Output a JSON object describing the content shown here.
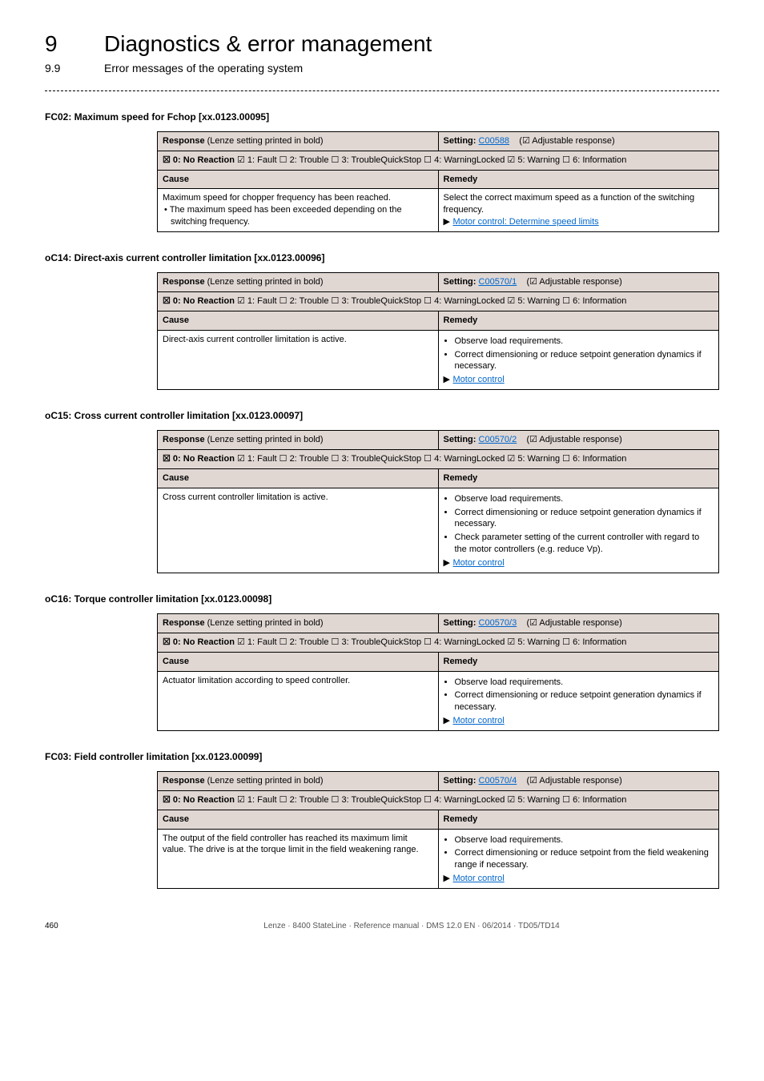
{
  "header": {
    "chapter_num": "9",
    "chapter_title": "Diagnostics & error management",
    "section_num": "9.9",
    "section_title": "Error messages of the operating system"
  },
  "common": {
    "response_label": "Response",
    "response_paren": "(Lenze setting printed in bold)",
    "setting_label": "Setting:",
    "adj_resp": "(☑ Adjustable response)",
    "opts_prefix": "☒ 0: No Reaction",
    "opts_rest": "  ☑ 1: Fault  ☐ 2: Trouble  ☐ 3: TroubleQuickStop  ☐ 4: WarningLocked  ☑ 5: Warning  ☐ 6: Information",
    "cause_hdr": "Cause",
    "remedy_hdr": "Remedy",
    "motor_control_link": "Motor control",
    "motor_speed_link": "Motor control: Determine speed limits"
  },
  "errors": [
    {
      "title": "FC02: Maximum speed for Fchop [xx.0123.00095]",
      "setting_code": "C00588",
      "cause_lines": [
        "Maximum speed for chopper frequency has been reached.",
        "• The maximum speed has been exceeded depending on the switching frequency."
      ],
      "remedy_text": "Select the correct maximum speed as a function of the switching frequency.",
      "remedy_link_key": "motor_speed_link",
      "remedy_bullets": []
    },
    {
      "title": "oC14: Direct-axis current controller limitation [xx.0123.00096]",
      "setting_code": "C00570/1",
      "cause_lines": [
        "Direct-axis current controller limitation is active."
      ],
      "remedy_text": "",
      "remedy_link_key": "motor_control_link",
      "remedy_bullets": [
        "Observe load requirements.",
        "Correct dimensioning or reduce setpoint generation dynamics if necessary."
      ]
    },
    {
      "title": "oC15: Cross current controller limitation [xx.0123.00097]",
      "setting_code": "C00570/2",
      "cause_lines": [
        "Cross current controller limitation is active."
      ],
      "remedy_text": "",
      "remedy_link_key": "motor_control_link",
      "remedy_bullets": [
        "Observe load requirements.",
        "Correct dimensioning or reduce setpoint generation dynamics if necessary.",
        "Check parameter setting of the current controller with regard to the motor controllers (e.g. reduce Vp)."
      ]
    },
    {
      "title": "oC16: Torque controller limitation [xx.0123.00098]",
      "setting_code": "C00570/3",
      "cause_lines": [
        "Actuator limitation according to speed controller."
      ],
      "remedy_text": "",
      "remedy_link_key": "motor_control_link",
      "remedy_bullets": [
        "Observe load requirements.",
        "Correct dimensioning or reduce setpoint generation dynamics if necessary."
      ]
    },
    {
      "title": "FC03: Field controller limitation [xx.0123.00099]",
      "setting_code": "C00570/4",
      "cause_lines": [
        "The output of the field controller has reached its maximum limit value. The drive is at the torque limit in the field weakening range."
      ],
      "remedy_text": "",
      "remedy_link_key": "motor_control_link",
      "remedy_bullets": [
        "Observe load requirements.",
        "Correct dimensioning or reduce setpoint from the field weakening range if necessary."
      ]
    }
  ],
  "footer": {
    "page": "460",
    "text": "Lenze · 8400 StateLine · Reference manual · DMS 12.0 EN · 06/2014 · TD05/TD14"
  }
}
